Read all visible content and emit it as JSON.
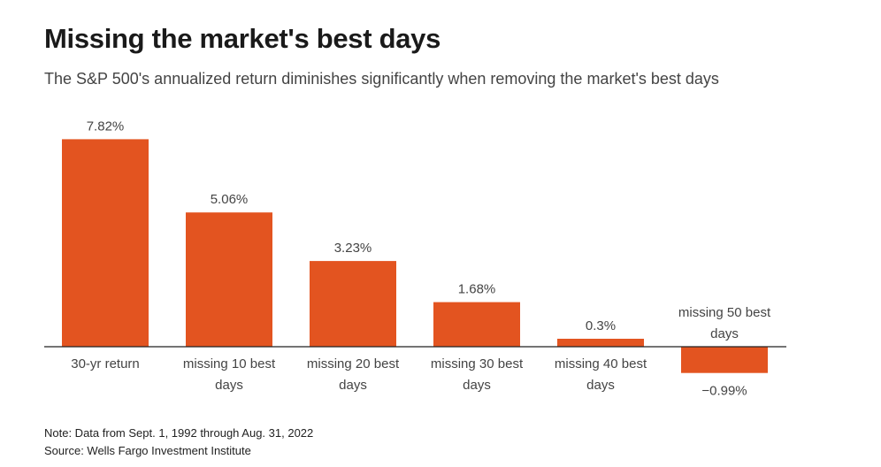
{
  "chart_data": {
    "type": "bar",
    "title": "Missing the market's best days",
    "subtitle": "The S&P 500's annualized return diminishes significantly when removing the market's best days",
    "categories": [
      "30-yr return",
      "missing 10 best days",
      "missing 20 best days",
      "missing 30 best days",
      "missing 40 best days",
      "missing 50 best days"
    ],
    "category_lines": [
      [
        "30-yr return"
      ],
      [
        "missing 10 best",
        "days"
      ],
      [
        "missing 20 best",
        "days"
      ],
      [
        "missing 30 best",
        "days"
      ],
      [
        "missing 40 best",
        "days"
      ],
      [
        "missing 50 best",
        "days"
      ]
    ],
    "values": [
      7.82,
      5.06,
      3.23,
      1.68,
      0.3,
      -0.99
    ],
    "data_labels": [
      "7.82%",
      "5.06%",
      "3.23%",
      "1.68%",
      "0.3%",
      "−0.99%"
    ],
    "xlabel": "",
    "ylabel": "",
    "ylim": [
      -0.99,
      7.82
    ],
    "grid": false,
    "bar_color": "#e35420"
  },
  "note": "Note: Data from Sept. 1, 1992 through Aug. 31, 2022",
  "source": "Source: Wells Fargo Investment Institute"
}
